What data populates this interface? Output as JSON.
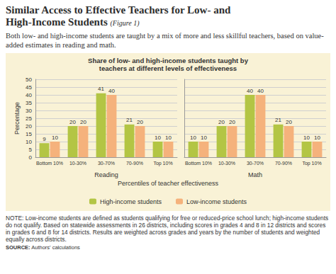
{
  "figure": {
    "title": "Similar Access to Effective Teachers for Low- and High-Income Students",
    "title_note": "(Figure 1)",
    "subtitle": "Both low- and high-income students are taught by a mix of more and less skillful teachers, based on value-added estimates in reading and math.",
    "xlabel": "Percentiles of teacher effectiveness",
    "note": "NOTE: Low-income students are defined as students qualifying for free or reduced-price school lunch; high-income students do not qualify. Based on statewide assessments in 26 districts, including scores in grades 4 and 8 in 12 districts and scores in grades 6 and 8 for 14 districts. Results are weighted across grades and years by the number of students and weighted equally across districts.",
    "source_label": "SOURCE:",
    "source": "Authors' calculations"
  },
  "chart_data": [
    {
      "type": "bar",
      "title": "Share of low- and high-income students taught by teachers at different levels of effectiveness",
      "xlabel": "Reading",
      "ylabel": "Percentage",
      "categories": [
        "Bottom 10%",
        "10-30%",
        "30-70%",
        "70-90%",
        "Top 10%"
      ],
      "series": [
        {
          "name": "High-income students",
          "color": "#b3c544",
          "values": [
            9,
            20,
            41,
            21,
            10
          ]
        },
        {
          "name": "Low-income students",
          "color": "#f5b27c",
          "values": [
            10,
            20,
            40,
            20,
            10
          ]
        }
      ],
      "ylim": [
        0,
        50
      ],
      "yticks": [
        0,
        5,
        10,
        15,
        20,
        25,
        30,
        35,
        40,
        45,
        50
      ],
      "grid": true,
      "data_labels": true,
      "legend": "bottom"
    },
    {
      "type": "bar",
      "xlabel": "Math",
      "categories": [
        "Bottom 10%",
        "10-30%",
        "30-70%",
        "70-90%",
        "Top 10%"
      ],
      "series": [
        {
          "name": "High-income students",
          "color": "#b3c544",
          "values": [
            10,
            20,
            40,
            21,
            10
          ]
        },
        {
          "name": "Low-income students",
          "color": "#f5b27c",
          "values": [
            10,
            20,
            40,
            20,
            10
          ]
        }
      ],
      "ylim": [
        0,
        50
      ],
      "yticks": [
        0,
        5,
        10,
        15,
        20,
        25,
        30,
        35,
        40,
        45,
        50
      ],
      "grid": true,
      "data_labels": true,
      "tick_labels": "x"
    }
  ]
}
